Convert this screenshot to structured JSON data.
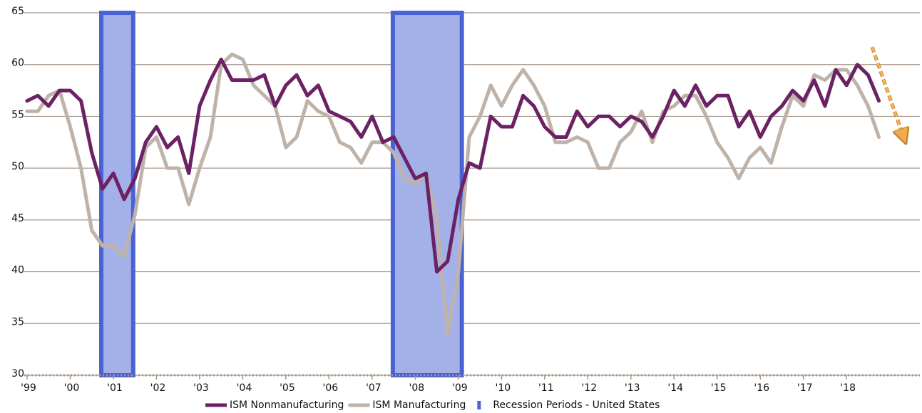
{
  "chart_data": {
    "type": "line",
    "x": [
      1999,
      1999.25,
      1999.5,
      1999.75,
      2000,
      2000.25,
      2000.5,
      2000.75,
      2001,
      2001.25,
      2001.5,
      2001.75,
      2002,
      2002.25,
      2002.5,
      2002.75,
      2003,
      2003.25,
      2003.5,
      2003.75,
      2004,
      2004.25,
      2004.5,
      2004.75,
      2005,
      2005.25,
      2005.5,
      2005.75,
      2006,
      2006.25,
      2006.5,
      2006.75,
      2007,
      2007.25,
      2007.5,
      2007.75,
      2008,
      2008.25,
      2008.5,
      2008.75,
      2009,
      2009.25,
      2009.5,
      2009.75,
      2010,
      2010.25,
      2010.5,
      2010.75,
      2011,
      2011.25,
      2011.5,
      2011.75,
      2012,
      2012.25,
      2012.5,
      2012.75,
      2013,
      2013.25,
      2013.5,
      2013.75,
      2014,
      2014.25,
      2014.5,
      2014.75,
      2015,
      2015.25,
      2015.5,
      2015.75,
      2016,
      2016.25,
      2016.5,
      2016.75,
      2017,
      2017.25,
      2017.5,
      2017.75,
      2018,
      2018.25,
      2018.5,
      2018.75
    ],
    "series": [
      {
        "name": "ISM Nonmanufacturing",
        "color": "#6b2163",
        "values": [
          56.5,
          57,
          56,
          57.5,
          57.5,
          56.5,
          51.5,
          48,
          49.5,
          47,
          49,
          52.5,
          54,
          52,
          53,
          49.5,
          56,
          58.5,
          60.5,
          58.5,
          58.5,
          58.5,
          59,
          56,
          58,
          59,
          57,
          58,
          55.5,
          55,
          54.5,
          53,
          55,
          52.5,
          53,
          51,
          49,
          49.5,
          40,
          41,
          47,
          50.5,
          50,
          55,
          54,
          54,
          57,
          56,
          54,
          53,
          53,
          55.5,
          54,
          55,
          55,
          54,
          55,
          54.5,
          53,
          55,
          57.5,
          56,
          58,
          56,
          57,
          57,
          54,
          55.5,
          53,
          55,
          56,
          57.5,
          56.5,
          58.5,
          56,
          59.5,
          58,
          60,
          59,
          56.5
        ]
      },
      {
        "name": "ISM Manufacturing",
        "color": "#bfb3a9",
        "values": [
          55.5,
          55.5,
          57,
          57.5,
          54,
          50,
          44,
          42.5,
          42.5,
          41.5,
          45.5,
          52,
          53,
          50,
          50,
          46.5,
          50,
          53,
          60,
          61,
          60.5,
          58,
          57,
          56,
          52,
          53,
          56.5,
          55.5,
          55,
          52.5,
          52,
          50.5,
          52.5,
          52.5,
          51.5,
          49,
          48.5,
          49.5,
          45,
          34,
          40,
          53,
          55,
          58,
          56,
          58,
          59.5,
          58,
          56,
          52.5,
          52.5,
          53,
          52.5,
          50,
          50,
          52.5,
          53.5,
          55.5,
          52.5,
          55.5,
          56,
          57,
          57,
          55,
          52.5,
          51,
          49,
          51,
          52,
          50.5,
          54,
          57,
          56,
          59,
          58.5,
          59.5,
          59.5,
          58,
          56,
          53
        ]
      }
    ],
    "recessions": {
      "name": "Recession Periods - United States",
      "color": "#a4b1e8",
      "edge": "#4a62d4",
      "ranges": [
        [
          2000.72,
          2001.46
        ],
        [
          2007.48,
          2009.08
        ]
      ]
    },
    "xlim": [
      1999,
      2019.7
    ],
    "xticks": [
      {
        "value": 1999,
        "label": "'99"
      },
      {
        "value": 2000,
        "label": "'00"
      },
      {
        "value": 2001,
        "label": "'01"
      },
      {
        "value": 2002,
        "label": "'02"
      },
      {
        "value": 2003,
        "label": "'03"
      },
      {
        "value": 2004,
        "label": "'04"
      },
      {
        "value": 2005,
        "label": "'05"
      },
      {
        "value": 2006,
        "label": "'06"
      },
      {
        "value": 2007,
        "label": "'07"
      },
      {
        "value": 2008,
        "label": "'08"
      },
      {
        "value": 2009,
        "label": "'09"
      },
      {
        "value": 2010,
        "label": "'10"
      },
      {
        "value": 2011,
        "label": "'11"
      },
      {
        "value": 2012,
        "label": "'12"
      },
      {
        "value": 2013,
        "label": "'13"
      },
      {
        "value": 2014,
        "label": "'14"
      },
      {
        "value": 2015,
        "label": "'15"
      },
      {
        "value": 2016,
        "label": "'16"
      },
      {
        "value": 2017,
        "label": "'17"
      },
      {
        "value": 2018,
        "label": "'18"
      }
    ],
    "ylim": [
      30,
      65
    ],
    "yticks": [
      30,
      35,
      40,
      45,
      50,
      55,
      60,
      65
    ],
    "grid": true
  }
}
